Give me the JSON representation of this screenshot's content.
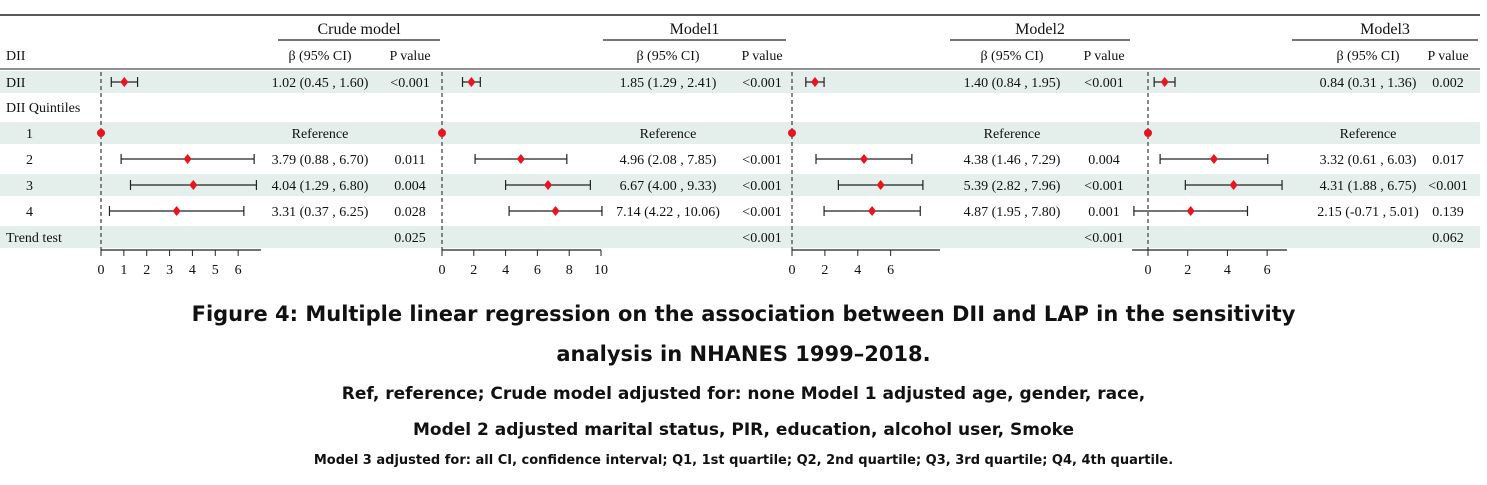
{
  "chart_data": {
    "type": "forest",
    "column_headers": {
      "beta": "β (95% CI)",
      "p": "P value"
    },
    "row_labels": [
      "DII",
      "DII Quintiles",
      "1",
      "2",
      "3",
      "4",
      "Trend test"
    ],
    "top_left_label": "DII",
    "reference_label": "Reference",
    "models": [
      {
        "name": "Crude model",
        "xlim": [
          0,
          7
        ],
        "ticks": [
          0,
          1,
          2,
          3,
          4,
          5,
          6
        ],
        "rows": [
          {
            "est": 1.02,
            "lo": 0.45,
            "hi": 1.6,
            "ci": "1.02 (0.45 , 1.60)",
            "p": "<0.001"
          },
          null,
          {
            "ref": true
          },
          {
            "est": 3.79,
            "lo": 0.88,
            "hi": 6.7,
            "ci": "3.79 (0.88 , 6.70)",
            "p": "0.011"
          },
          {
            "est": 4.04,
            "lo": 1.29,
            "hi": 6.8,
            "ci": "4.04 (1.29 , 6.80)",
            "p": "0.004"
          },
          {
            "est": 3.31,
            "lo": 0.37,
            "hi": 6.25,
            "ci": "3.31 (0.37 , 6.25)",
            "p": "0.028"
          },
          {
            "p": "0.025"
          }
        ]
      },
      {
        "name": "Model1",
        "xlim": [
          0,
          10
        ],
        "ticks": [
          0,
          2,
          4,
          6,
          8,
          10
        ],
        "rows": [
          {
            "est": 1.85,
            "lo": 1.29,
            "hi": 2.41,
            "ci": "1.85 (1.29 , 2.41)",
            "p": "<0.001"
          },
          null,
          {
            "ref": true
          },
          {
            "est": 4.96,
            "lo": 2.08,
            "hi": 7.85,
            "ci": "4.96 (2.08 , 7.85)",
            "p": "<0.001"
          },
          {
            "est": 6.67,
            "lo": 4.0,
            "hi": 9.33,
            "ci": "6.67 (4.00 , 9.33)",
            "p": "<0.001"
          },
          {
            "est": 7.14,
            "lo": 4.22,
            "hi": 10.06,
            "ci": "7.14 (4.22 , 10.06)",
            "p": "<0.001"
          },
          {
            "p": "<0.001"
          }
        ]
      },
      {
        "name": "Model2",
        "xlim": [
          0,
          9
        ],
        "ticks": [
          0,
          2,
          4,
          6
        ],
        "rows": [
          {
            "est": 1.4,
            "lo": 0.84,
            "hi": 1.95,
            "ci": "1.40 (0.84 , 1.95)",
            "p": "<0.001"
          },
          null,
          {
            "ref": true
          },
          {
            "est": 4.38,
            "lo": 1.46,
            "hi": 7.29,
            "ci": "4.38 (1.46 , 7.29)",
            "p": "0.004"
          },
          {
            "est": 5.39,
            "lo": 2.82,
            "hi": 7.96,
            "ci": "5.39 (2.82 , 7.96)",
            "p": "<0.001"
          },
          {
            "est": 4.87,
            "lo": 1.95,
            "hi": 7.8,
            "ci": "4.87 (1.95 , 7.80)",
            "p": "0.001"
          },
          {
            "p": "<0.001"
          }
        ]
      },
      {
        "name": "Model3",
        "xlim": [
          -0.8,
          7
        ],
        "ticks": [
          0,
          2,
          4,
          6
        ],
        "rows": [
          {
            "est": 0.84,
            "lo": 0.31,
            "hi": 1.36,
            "ci": "0.84 (0.31 , 1.36)",
            "p": "0.002"
          },
          null,
          {
            "ref": true
          },
          {
            "est": 3.32,
            "lo": 0.61,
            "hi": 6.03,
            "ci": "3.32 (0.61 , 6.03)",
            "p": "0.017"
          },
          {
            "est": 4.31,
            "lo": 1.88,
            "hi": 6.75,
            "ci": "4.31 (1.88 , 6.75)",
            "p": "<0.001"
          },
          {
            "est": 2.15,
            "lo": -0.71,
            "hi": 5.01,
            "ci": "2.15 (-0.71 , 5.01)",
            "p": "0.139"
          },
          {
            "p": "0.062"
          }
        ]
      }
    ],
    "colors": {
      "point": "#e8141e",
      "band": "#e4efec",
      "line": "#222222"
    }
  },
  "caption": {
    "title_line1": "Figure 4: Multiple linear regression on the association between DII and LAP in the sensitivity",
    "title_line2": "analysis in NHANES 1999–2018.",
    "note_line1": "Ref, reference; Crude model adjusted for: none Model 1 adjusted age, gender, race,",
    "note_line2": "Model 2 adjusted marital status, PIR, education, alcohol user, Smoke",
    "note_line3": "Model 3 adjusted for: all CI, confidence interval; Q1, 1st quartile; Q2, 2nd quartile; Q3, 3rd quartile; Q4, 4th quartile."
  }
}
